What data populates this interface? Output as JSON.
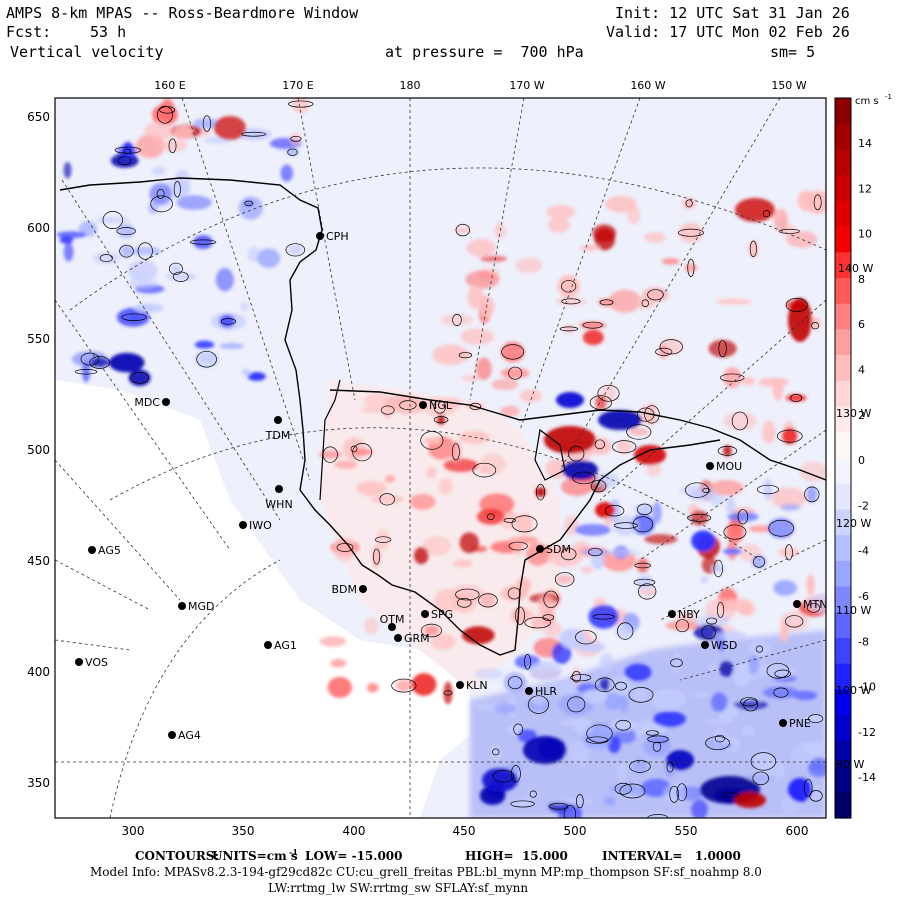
{
  "header": {
    "title": "AMPS 8-km MPAS -- Ross-Beardmore Window",
    "init": "Init: 12 UTC Sat 31 Jan 26",
    "fcst_label": "Fcst:",
    "fcst_value": "53 h",
    "valid": "Valid: 17 UTC Mon 02 Feb 26",
    "field": "Vertical velocity",
    "pressure": "at pressure =  700 hPa",
    "smoothing": "sm= 5"
  },
  "top_axis": [
    "160 E",
    "170 E",
    "180",
    "170 W",
    "160 W",
    "150 W"
  ],
  "left_axis": [
    "650",
    "600",
    "550",
    "500",
    "450",
    "400",
    "350"
  ],
  "bottom_axis": [
    "300",
    "350",
    "400",
    "450",
    "500",
    "550",
    "600"
  ],
  "meridian_labels": [
    "140 W",
    "130 W",
    "120 W",
    "110 W",
    "100 W",
    "90 W"
  ],
  "stations": [
    {
      "name": "CPH"
    },
    {
      "name": "NGL"
    },
    {
      "name": "MDC"
    },
    {
      "name": "TDM"
    },
    {
      "name": "WHN"
    },
    {
      "name": "IWO"
    },
    {
      "name": "MOU"
    },
    {
      "name": "SDM"
    },
    {
      "name": "AG5"
    },
    {
      "name": "BDM"
    },
    {
      "name": "MGD"
    },
    {
      "name": "OTM"
    },
    {
      "name": "SPG"
    },
    {
      "name": "GRM"
    },
    {
      "name": "NBY"
    },
    {
      "name": "MTN"
    },
    {
      "name": "AG1"
    },
    {
      "name": "WSD"
    },
    {
      "name": "VOS"
    },
    {
      "name": "KLN"
    },
    {
      "name": "HLR"
    },
    {
      "name": "AG4"
    },
    {
      "name": "PNE"
    }
  ],
  "colorbar": {
    "unit_label": "cm s",
    "unit_exp": "-1",
    "ticks": [
      "14",
      "12",
      "10",
      "8",
      "6",
      "4",
      "2",
      "0",
      "-2",
      "-4",
      "-6",
      "-8",
      "-10",
      "-12",
      "-14"
    ],
    "colors": [
      "#8c0000",
      "#a30000",
      "#b80000",
      "#cc0000",
      "#e00000",
      "#f50000",
      "#ff3030",
      "#ff5a5a",
      "#ff8080",
      "#ffa0a0",
      "#ffbebe",
      "#ffd6d6",
      "#ffebeb",
      "#fff6f6",
      "#f4f4ff",
      "#e4e8ff",
      "#cdd4ff",
      "#b5bfff",
      "#9aa6ff",
      "#7d88ff",
      "#5d66ff",
      "#3c44ff",
      "#1e22ff",
      "#0000f0",
      "#0000cc",
      "#0000a6",
      "#000085",
      "#000066"
    ]
  },
  "footer": {
    "contours_label": "CONTOURS:",
    "units": "UNITS=cm s",
    "units_exp": "-1",
    "low": "LOW= -15.000",
    "high": "HIGH=  15.000",
    "interval": "INTERVAL=   1.0000",
    "model_info": "Model Info: MPASv8.2.3-194-gf29cd82c CU:cu_grell_freitas PBL:bl_mynn MP:mp_thompson SF:sf_noahmp 8.0",
    "model_info_2": "LW:rrtmg_lw SW:rrtmg_sw SFLAY:sf_mynn"
  },
  "palette": {
    "sea_tint": "#eef0fb",
    "ice_shelf": "#fdf0f0",
    "coast": "#000000"
  }
}
